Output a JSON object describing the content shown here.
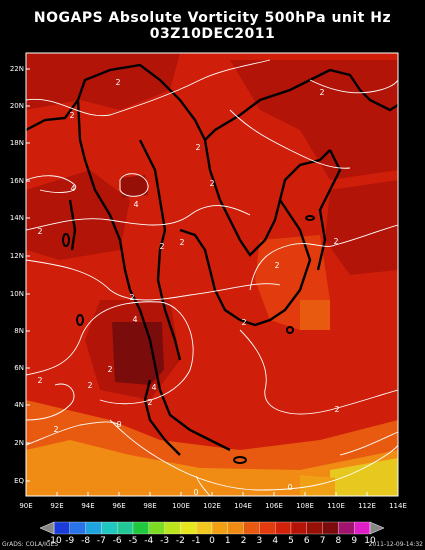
{
  "title": {
    "line1": "NOGAPS Absolute Vorticity 500hPa unit Hz",
    "line2": "03Z10DEC2011"
  },
  "lat_labels": [
    "22N",
    "20N",
    "18N",
    "16N",
    "14N",
    "12N",
    "10N",
    "8N",
    "6N",
    "4N",
    "2N",
    "EQ"
  ],
  "lon_labels": [
    "90E",
    "92E",
    "94E",
    "96E",
    "98E",
    "100E",
    "102E",
    "104E",
    "106E",
    "108E",
    "110E",
    "112E",
    "114E"
  ],
  "contour_labels": [
    "2",
    "2",
    "2",
    "4",
    "2",
    "2",
    "4",
    "4",
    "2",
    "2",
    "2",
    "2",
    "2",
    "2",
    "4",
    "2",
    "2",
    "2",
    "2",
    "2",
    "0",
    "0",
    "0",
    "2",
    "2"
  ],
  "colorbar": {
    "labels": [
      "-10",
      "-9",
      "-8",
      "-7",
      "-6",
      "-5",
      "-4",
      "-3",
      "-2",
      "-1",
      "0",
      "1",
      "2",
      "3",
      "4",
      "5",
      "6",
      "7",
      "8",
      "9",
      "10"
    ],
    "colors": [
      "#1a3cd8",
      "#2a74e8",
      "#1fa4e0",
      "#22c7c0",
      "#22c896",
      "#20c840",
      "#7cdc24",
      "#bde51e",
      "#e6e61e",
      "#f0c81e",
      "#f0a014",
      "#f08c14",
      "#e85a10",
      "#e23c0e",
      "#d2220a",
      "#b41408",
      "#961008",
      "#7a0c0c",
      "#a0146e",
      "#e01ec8"
    ]
  },
  "footer": {
    "left": "GrADS: COLA/IGES",
    "right": "2011-12-09-14:32"
  }
}
